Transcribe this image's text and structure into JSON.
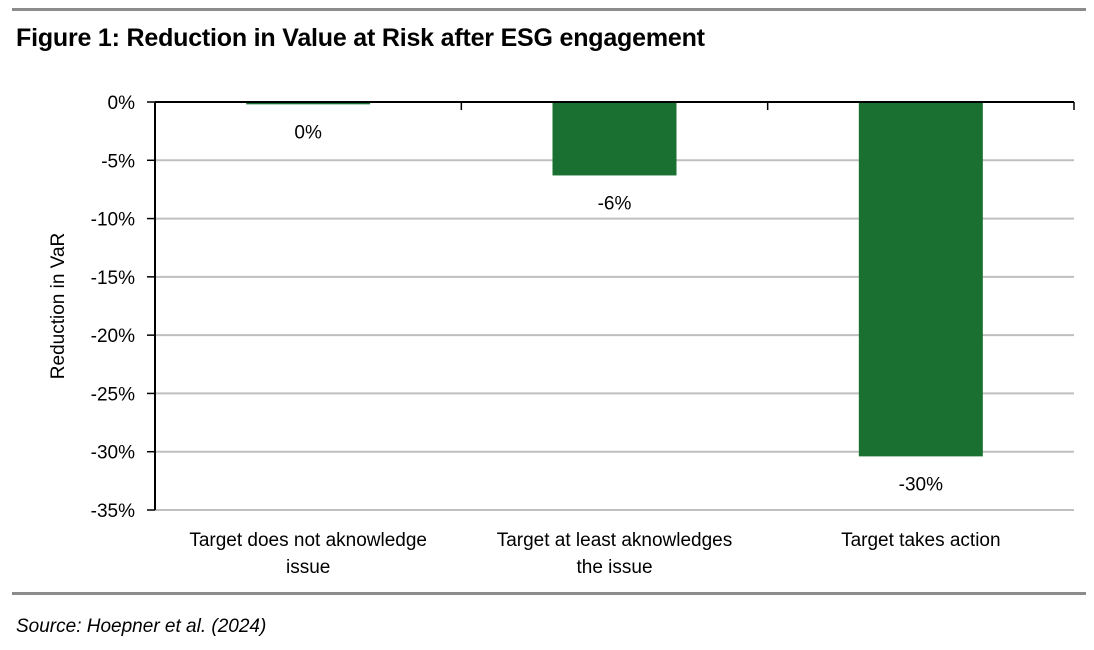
{
  "figure": {
    "title": "Figure 1: Reduction in Value at Risk after ESG engagement",
    "source": "Source: Hoepner et al. (2024)"
  },
  "colors": {
    "bar": "#1a7030",
    "grid": "#bfbfbf",
    "rule": "#8c8c8c",
    "axis": "#000000"
  },
  "chart_data": {
    "type": "bar",
    "title": "",
    "xlabel": "",
    "ylabel": "Reduction in VaR",
    "ylim": [
      -35,
      0
    ],
    "yticks": [
      0,
      -5,
      -10,
      -15,
      -20,
      -25,
      -30,
      -35
    ],
    "ytick_labels": [
      "0%",
      "-5%",
      "-10%",
      "-15%",
      "-20%",
      "-25%",
      "-30%",
      "-35%"
    ],
    "grid": true,
    "categories": [
      [
        "Target does not aknowledge",
        "issue"
      ],
      [
        "Target at least aknowledges",
        "the issue"
      ],
      [
        "Target takes action"
      ]
    ],
    "values": [
      -0.2,
      -6.3,
      -30.4
    ],
    "data_labels": [
      "0%",
      "-6%",
      "-30%"
    ]
  }
}
